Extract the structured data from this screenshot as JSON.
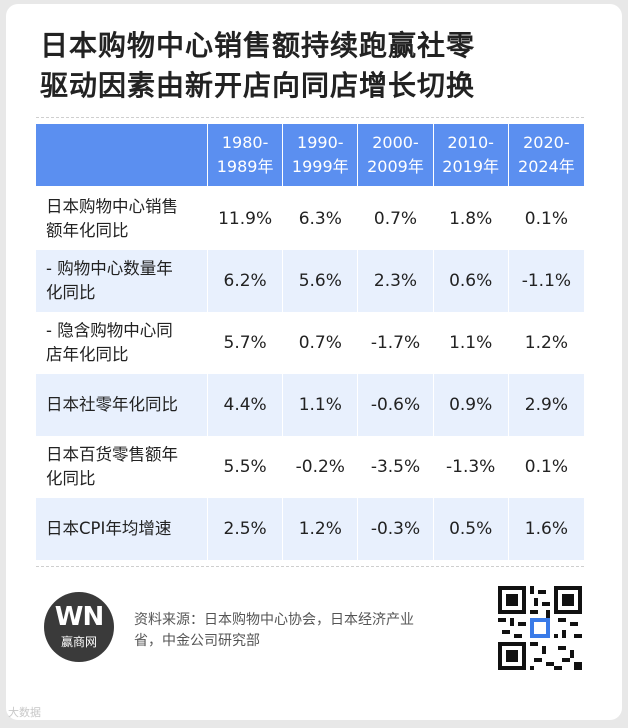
{
  "title": {
    "line1": "日本购物中心销售额持续跑赢社零",
    "line2": "驱动因素由新开店向同店增长切换"
  },
  "table": {
    "headers": [
      "",
      "1980-\n1989年",
      "1990-\n1999年",
      "2000-\n2009年",
      "2010-\n2019年",
      "2020-\n2024年"
    ],
    "header_lines": [
      [
        "1980-",
        "1989年"
      ],
      [
        "1990-",
        "1999年"
      ],
      [
        "2000-",
        "2009年"
      ],
      [
        "2010-",
        "2019年"
      ],
      [
        "2020-",
        "2024年"
      ]
    ],
    "rows": [
      {
        "label_lines": [
          "日本购物中心销售",
          "额年化同比"
        ],
        "values": [
          "11.9%",
          "6.3%",
          "0.7%",
          "1.8%",
          "0.1%"
        ]
      },
      {
        "label_lines": [
          "- 购物中心数量年",
          "化同比"
        ],
        "values": [
          "6.2%",
          "5.6%",
          "2.3%",
          "0.6%",
          "-1.1%"
        ]
      },
      {
        "label_lines": [
          "- 隐含购物中心同",
          "店年化同比"
        ],
        "values": [
          "5.7%",
          "0.7%",
          "-1.7%",
          "1.1%",
          "1.2%"
        ]
      },
      {
        "label_lines": [
          "日本社零年化同比"
        ],
        "values": [
          "4.4%",
          "1.1%",
          "-0.6%",
          "0.9%",
          "2.9%"
        ]
      },
      {
        "label_lines": [
          "日本百货零售额年",
          "化同比"
        ],
        "values": [
          "5.5%",
          "-0.2%",
          "-3.5%",
          "-1.3%",
          "0.1%"
        ]
      },
      {
        "label_lines": [
          "日本CPI年均增速"
        ],
        "values": [
          "2.5%",
          "1.2%",
          "-0.3%",
          "0.5%",
          "1.6%"
        ]
      }
    ]
  },
  "logo": {
    "mark": "WN",
    "brand": "赢商网"
  },
  "source": {
    "line1": "资料来源：日本购物中心协会，日本经济产业",
    "line2": "省，中金公司研究部"
  },
  "watermark": "大数据",
  "colors": {
    "header_bg": "#5b8ff0",
    "alt_row": "#e8f0fd"
  }
}
